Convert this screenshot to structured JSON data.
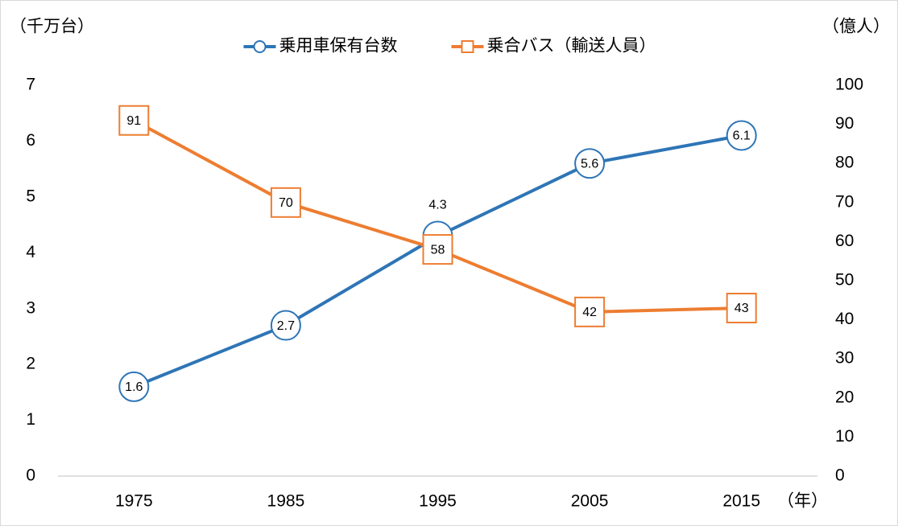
{
  "chart_data": {
    "type": "line",
    "y_label": "（千万台）",
    "y2_label": "（億人）",
    "x_label": "（年）",
    "categories": [
      "1975",
      "1985",
      "1995",
      "2005",
      "2015"
    ],
    "series": [
      {
        "name": "乗用車保有台数",
        "color": "#2e75b6",
        "marker": "circle",
        "values": [
          1.6,
          2.7,
          4.3,
          5.6,
          6.1
        ]
      },
      {
        "name": "乗合バス（輸送人員）",
        "color": "#ed7d31",
        "marker": "square",
        "axis": "y2",
        "values": [
          91,
          70,
          58,
          42,
          43
        ]
      }
    ],
    "ylim": [
      0,
      7
    ],
    "yticks": [
      0,
      1,
      2,
      3,
      4,
      5,
      6,
      7
    ],
    "y2lim": [
      0,
      100
    ],
    "y2ticks": [
      0,
      10,
      20,
      30,
      40,
      50,
      60,
      70,
      80,
      90,
      100
    ],
    "grid": false,
    "legend": "top"
  }
}
